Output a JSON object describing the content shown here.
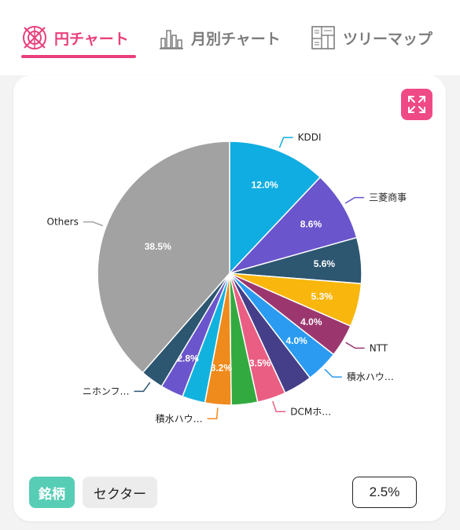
{
  "tabs": [
    {
      "label": "円チャート",
      "active": true,
      "icon": "pie-target-icon"
    },
    {
      "label": "月別チャート",
      "active": false,
      "icon": "bar-chart-icon"
    },
    {
      "label": "ツリーマップ",
      "active": false,
      "icon": "treemap-icon"
    }
  ],
  "colors": {
    "accent": "#e8407c",
    "expand_button": "#ef4a86",
    "meigara_button": "#58cdb6"
  },
  "controls": {
    "meigara_label": "銘柄",
    "sector_label": "セクター",
    "threshold_value": "2.5%"
  },
  "chart_data": {
    "type": "pie",
    "title": "",
    "slices": [
      {
        "name": "KDDI",
        "value": 12.0,
        "label": "12.0%",
        "color": "#0fade1",
        "legend": "KDDI"
      },
      {
        "name": "三菱商事",
        "value": 8.6,
        "label": "8.6%",
        "color": "#6a55cc",
        "legend": "三菱商事"
      },
      {
        "name": "",
        "value": 5.6,
        "label": "5.6%",
        "color": "#2d5670",
        "legend": ""
      },
      {
        "name": "",
        "value": 5.3,
        "label": "5.3%",
        "color": "#f9b60d",
        "legend": ""
      },
      {
        "name": "NTT",
        "value": 4.0,
        "label": "4.0%",
        "color": "#9b376e",
        "legend": "NTT"
      },
      {
        "name": "積水ハウ…",
        "value": 4.0,
        "label": "4.0%",
        "color": "#2a9bf1",
        "legend": "積水ハウ…"
      },
      {
        "name": "",
        "value": 3.5,
        "label": "",
        "color": "#443f88",
        "legend": ""
      },
      {
        "name": "DCMホ…",
        "value": 3.5,
        "label": "3.5%",
        "color": "#ea5e84",
        "legend": "DCMホ…"
      },
      {
        "name": "",
        "value": 3.2,
        "label": "",
        "color": "#33aa3f",
        "legend": ""
      },
      {
        "name": "積水ハウ…",
        "value": 3.2,
        "label": "3.2%",
        "color": "#ee8b1c",
        "legend": "積水ハウ…"
      },
      {
        "name": "",
        "value": 2.8,
        "label": "",
        "color": "#12b2df",
        "legend": ""
      },
      {
        "name": "",
        "value": 2.8,
        "label": "2.8%",
        "color": "#6a55cc",
        "legend": ""
      },
      {
        "name": "ニホンフ…",
        "value": 2.8,
        "label": "",
        "color": "#2d5670",
        "legend": "ニホンフ…"
      },
      {
        "name": "Others",
        "value": 38.5,
        "label": "38.5%",
        "color": "#a2a2a2",
        "legend": "Others"
      }
    ]
  }
}
